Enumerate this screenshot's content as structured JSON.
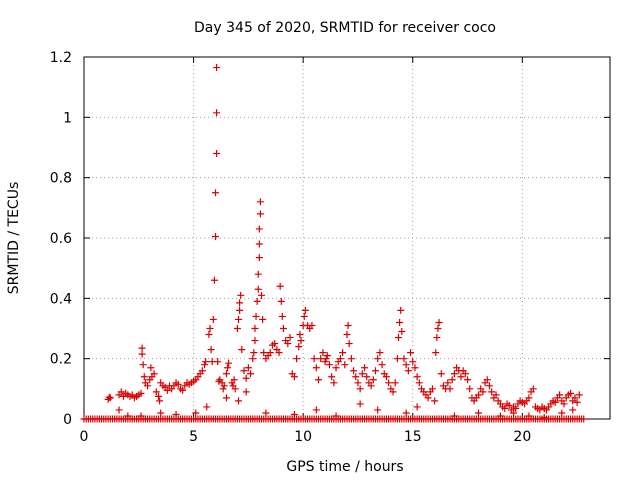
{
  "chart_data": {
    "type": "scatter",
    "title": "Day 345 of 2020, SRMTID for receiver coco",
    "xlabel": "GPS time / hours",
    "ylabel": "SRMTID / TECUs",
    "xlim": [
      0,
      24
    ],
    "ylim": [
      0,
      1.2
    ],
    "xticks": [
      {
        "value": 0,
        "label": "0"
      },
      {
        "value": 5,
        "label": "5"
      },
      {
        "value": 10,
        "label": "10"
      },
      {
        "value": 15,
        "label": "15"
      },
      {
        "value": 20,
        "label": "20"
      }
    ],
    "yticks": [
      {
        "value": 0,
        "label": "0"
      },
      {
        "value": 0.2,
        "label": "0.2"
      },
      {
        "value": 0.4,
        "label": "0.4"
      },
      {
        "value": 0.6,
        "label": "0.6"
      },
      {
        "value": 0.8,
        "label": "0.8"
      },
      {
        "value": 1.0,
        "label": "1"
      },
      {
        "value": 1.2,
        "label": "1.2"
      }
    ],
    "grid": true,
    "marker": "+",
    "color": "#dd0000",
    "series": [
      {
        "name": "SRMTID",
        "points": [
          [
            1.1,
            0.065
          ],
          [
            1.15,
            0.072
          ],
          [
            1.2,
            0.07
          ],
          [
            1.6,
            0.08
          ],
          [
            1.7,
            0.09
          ],
          [
            1.8,
            0.075
          ],
          [
            1.9,
            0.085
          ],
          [
            2.0,
            0.08
          ],
          [
            2.1,
            0.075
          ],
          [
            2.2,
            0.08
          ],
          [
            2.3,
            0.07
          ],
          [
            2.4,
            0.075
          ],
          [
            2.5,
            0.08
          ],
          [
            2.6,
            0.085
          ],
          [
            2.65,
            0.235
          ],
          [
            2.65,
            0.215
          ],
          [
            2.7,
            0.18
          ],
          [
            2.75,
            0.14
          ],
          [
            2.8,
            0.12
          ],
          [
            2.9,
            0.11
          ],
          [
            3.0,
            0.13
          ],
          [
            3.05,
            0.17
          ],
          [
            3.1,
            0.14
          ],
          [
            3.2,
            0.15
          ],
          [
            3.3,
            0.09
          ],
          [
            3.4,
            0.075
          ],
          [
            3.45,
            0.06
          ],
          [
            3.5,
            0.12
          ],
          [
            3.6,
            0.11
          ],
          [
            3.7,
            0.105
          ],
          [
            3.8,
            0.095
          ],
          [
            3.9,
            0.11
          ],
          [
            4.0,
            0.1
          ],
          [
            4.1,
            0.11
          ],
          [
            4.2,
            0.12
          ],
          [
            4.3,
            0.115
          ],
          [
            4.4,
            0.1
          ],
          [
            4.5,
            0.095
          ],
          [
            4.6,
            0.11
          ],
          [
            4.7,
            0.12
          ],
          [
            4.8,
            0.115
          ],
          [
            4.9,
            0.12
          ],
          [
            5.0,
            0.125
          ],
          [
            5.1,
            0.13
          ],
          [
            5.2,
            0.14
          ],
          [
            5.3,
            0.15
          ],
          [
            5.4,
            0.16
          ],
          [
            5.5,
            0.18
          ],
          [
            5.55,
            0.19
          ],
          [
            5.7,
            0.28
          ],
          [
            5.75,
            0.3
          ],
          [
            5.8,
            0.23
          ],
          [
            5.85,
            0.19
          ],
          [
            5.9,
            0.33
          ],
          [
            5.95,
            0.46
          ],
          [
            6.0,
            0.605
          ],
          [
            6.0,
            0.75
          ],
          [
            6.05,
            0.88
          ],
          [
            6.05,
            1.015
          ],
          [
            6.05,
            1.165
          ],
          [
            6.1,
            0.19
          ],
          [
            6.15,
            0.125
          ],
          [
            6.2,
            0.13
          ],
          [
            6.3,
            0.12
          ],
          [
            6.35,
            0.1
          ],
          [
            6.4,
            0.11
          ],
          [
            6.5,
            0.15
          ],
          [
            6.55,
            0.17
          ],
          [
            6.6,
            0.185
          ],
          [
            6.75,
            0.12
          ],
          [
            6.8,
            0.11
          ],
          [
            6.85,
            0.13
          ],
          [
            6.9,
            0.1
          ],
          [
            7.0,
            0.3
          ],
          [
            7.05,
            0.33
          ],
          [
            7.1,
            0.36
          ],
          [
            7.1,
            0.385
          ],
          [
            7.15,
            0.41
          ],
          [
            7.2,
            0.23
          ],
          [
            7.3,
            0.16
          ],
          [
            7.4,
            0.135
          ],
          [
            7.5,
            0.17
          ],
          [
            7.6,
            0.15
          ],
          [
            7.7,
            0.2
          ],
          [
            7.75,
            0.22
          ],
          [
            7.8,
            0.26
          ],
          [
            7.8,
            0.3
          ],
          [
            7.85,
            0.34
          ],
          [
            7.9,
            0.39
          ],
          [
            7.95,
            0.43
          ],
          [
            7.95,
            0.48
          ],
          [
            8.0,
            0.535
          ],
          [
            8.0,
            0.58
          ],
          [
            8.0,
            0.63
          ],
          [
            8.05,
            0.68
          ],
          [
            8.05,
            0.72
          ],
          [
            8.1,
            0.41
          ],
          [
            8.15,
            0.33
          ],
          [
            8.2,
            0.22
          ],
          [
            8.3,
            0.2
          ],
          [
            8.4,
            0.21
          ],
          [
            8.5,
            0.22
          ],
          [
            8.6,
            0.245
          ],
          [
            8.7,
            0.25
          ],
          [
            8.8,
            0.23
          ],
          [
            8.9,
            0.22
          ],
          [
            8.95,
            0.44
          ],
          [
            9.0,
            0.39
          ],
          [
            9.05,
            0.34
          ],
          [
            9.1,
            0.3
          ],
          [
            9.2,
            0.26
          ],
          [
            9.3,
            0.25
          ],
          [
            9.4,
            0.27
          ],
          [
            9.5,
            0.15
          ],
          [
            9.6,
            0.14
          ],
          [
            9.7,
            0.2
          ],
          [
            9.8,
            0.24
          ],
          [
            9.85,
            0.28
          ],
          [
            9.9,
            0.26
          ],
          [
            10.0,
            0.31
          ],
          [
            10.05,
            0.34
          ],
          [
            10.1,
            0.36
          ],
          [
            10.2,
            0.31
          ],
          [
            10.3,
            0.3
          ],
          [
            10.4,
            0.31
          ],
          [
            10.5,
            0.2
          ],
          [
            10.6,
            0.17
          ],
          [
            10.7,
            0.13
          ],
          [
            10.8,
            0.2
          ],
          [
            10.9,
            0.22
          ],
          [
            11.0,
            0.19
          ],
          [
            11.05,
            0.2
          ],
          [
            11.1,
            0.21
          ],
          [
            11.2,
            0.18
          ],
          [
            11.3,
            0.14
          ],
          [
            11.4,
            0.12
          ],
          [
            11.5,
            0.17
          ],
          [
            11.6,
            0.19
          ],
          [
            11.7,
            0.2
          ],
          [
            11.8,
            0.22
          ],
          [
            11.9,
            0.18
          ],
          [
            12.0,
            0.28
          ],
          [
            12.05,
            0.31
          ],
          [
            12.1,
            0.25
          ],
          [
            12.2,
            0.2
          ],
          [
            12.3,
            0.16
          ],
          [
            12.4,
            0.14
          ],
          [
            12.5,
            0.12
          ],
          [
            12.6,
            0.1
          ],
          [
            12.7,
            0.15
          ],
          [
            12.8,
            0.17
          ],
          [
            12.9,
            0.14
          ],
          [
            13.0,
            0.12
          ],
          [
            13.1,
            0.11
          ],
          [
            13.2,
            0.13
          ],
          [
            13.3,
            0.16
          ],
          [
            13.4,
            0.2
          ],
          [
            13.5,
            0.22
          ],
          [
            13.6,
            0.18
          ],
          [
            13.7,
            0.15
          ],
          [
            13.8,
            0.14
          ],
          [
            13.9,
            0.12
          ],
          [
            14.0,
            0.1
          ],
          [
            14.1,
            0.09
          ],
          [
            14.2,
            0.12
          ],
          [
            14.3,
            0.2
          ],
          [
            14.35,
            0.27
          ],
          [
            14.4,
            0.32
          ],
          [
            14.45,
            0.36
          ],
          [
            14.5,
            0.29
          ],
          [
            14.6,
            0.2
          ],
          [
            14.7,
            0.18
          ],
          [
            14.8,
            0.16
          ],
          [
            14.9,
            0.22
          ],
          [
            15.0,
            0.19
          ],
          [
            15.1,
            0.17
          ],
          [
            15.2,
            0.14
          ],
          [
            15.3,
            0.12
          ],
          [
            15.4,
            0.1
          ],
          [
            15.5,
            0.09
          ],
          [
            15.6,
            0.08
          ],
          [
            15.7,
            0.07
          ],
          [
            15.8,
            0.09
          ],
          [
            15.9,
            0.1
          ],
          [
            16.0,
            0.06
          ],
          [
            16.05,
            0.22
          ],
          [
            16.1,
            0.27
          ],
          [
            16.15,
            0.3
          ],
          [
            16.2,
            0.32
          ],
          [
            16.3,
            0.15
          ],
          [
            16.4,
            0.11
          ],
          [
            16.5,
            0.1
          ],
          [
            16.6,
            0.12
          ],
          [
            16.7,
            0.1
          ],
          [
            16.8,
            0.13
          ],
          [
            16.9,
            0.15
          ],
          [
            17.0,
            0.17
          ],
          [
            17.1,
            0.16
          ],
          [
            17.2,
            0.14
          ],
          [
            17.3,
            0.16
          ],
          [
            17.4,
            0.15
          ],
          [
            17.5,
            0.13
          ],
          [
            17.6,
            0.1
          ],
          [
            17.7,
            0.07
          ],
          [
            17.8,
            0.06
          ],
          [
            17.9,
            0.07
          ],
          [
            18.0,
            0.08
          ],
          [
            18.1,
            0.1
          ],
          [
            18.2,
            0.09
          ],
          [
            18.3,
            0.12
          ],
          [
            18.4,
            0.13
          ],
          [
            18.5,
            0.11
          ],
          [
            18.6,
            0.09
          ],
          [
            18.7,
            0.07
          ],
          [
            18.8,
            0.08
          ],
          [
            18.9,
            0.06
          ],
          [
            19.0,
            0.05
          ],
          [
            19.1,
            0.04
          ],
          [
            19.2,
            0.035
          ],
          [
            19.3,
            0.05
          ],
          [
            19.4,
            0.045
          ],
          [
            19.5,
            0.03
          ],
          [
            19.6,
            0.04
          ],
          [
            19.7,
            0.035
          ],
          [
            19.8,
            0.05
          ],
          [
            19.9,
            0.06
          ],
          [
            20.0,
            0.055
          ],
          [
            20.1,
            0.05
          ],
          [
            20.2,
            0.06
          ],
          [
            20.3,
            0.07
          ],
          [
            20.4,
            0.09
          ],
          [
            20.5,
            0.1
          ],
          [
            20.6,
            0.04
          ],
          [
            20.7,
            0.035
          ],
          [
            20.8,
            0.03
          ],
          [
            20.9,
            0.04
          ],
          [
            21.0,
            0.035
          ],
          [
            21.1,
            0.03
          ],
          [
            21.2,
            0.04
          ],
          [
            21.3,
            0.05
          ],
          [
            21.4,
            0.06
          ],
          [
            21.5,
            0.055
          ],
          [
            21.6,
            0.07
          ],
          [
            21.7,
            0.08
          ],
          [
            21.8,
            0.06
          ],
          [
            21.9,
            0.05
          ],
          [
            22.0,
            0.07
          ],
          [
            22.1,
            0.08
          ],
          [
            22.2,
            0.085
          ],
          [
            22.3,
            0.06
          ],
          [
            22.4,
            0.07
          ],
          [
            22.5,
            0.055
          ],
          [
            22.6,
            0.08
          ],
          [
            1.6,
            0.03
          ],
          [
            2.0,
            0.01
          ],
          [
            2.6,
            0.01
          ],
          [
            3.5,
            0.02
          ],
          [
            4.2,
            0.015
          ],
          [
            5.1,
            0.02
          ],
          [
            5.6,
            0.04
          ],
          [
            6.5,
            0.07
          ],
          [
            7.05,
            0.06
          ],
          [
            7.4,
            0.09
          ],
          [
            8.3,
            0.02
          ],
          [
            9.6,
            0.015
          ],
          [
            10.6,
            0.03
          ],
          [
            11.5,
            0.01
          ],
          [
            12.6,
            0.05
          ],
          [
            13.4,
            0.03
          ],
          [
            14.7,
            0.02
          ],
          [
            15.2,
            0.04
          ],
          [
            16.9,
            0.01
          ],
          [
            18.0,
            0.02
          ],
          [
            19.0,
            0.01
          ],
          [
            19.6,
            0.02
          ],
          [
            20.3,
            0.01
          ],
          [
            21.0,
            0.005
          ],
          [
            21.8,
            0.02
          ],
          [
            22.3,
            0.03
          ]
        ],
        "zero_band": [
          0.0,
          22.8,
          0.1
        ]
      }
    ]
  }
}
